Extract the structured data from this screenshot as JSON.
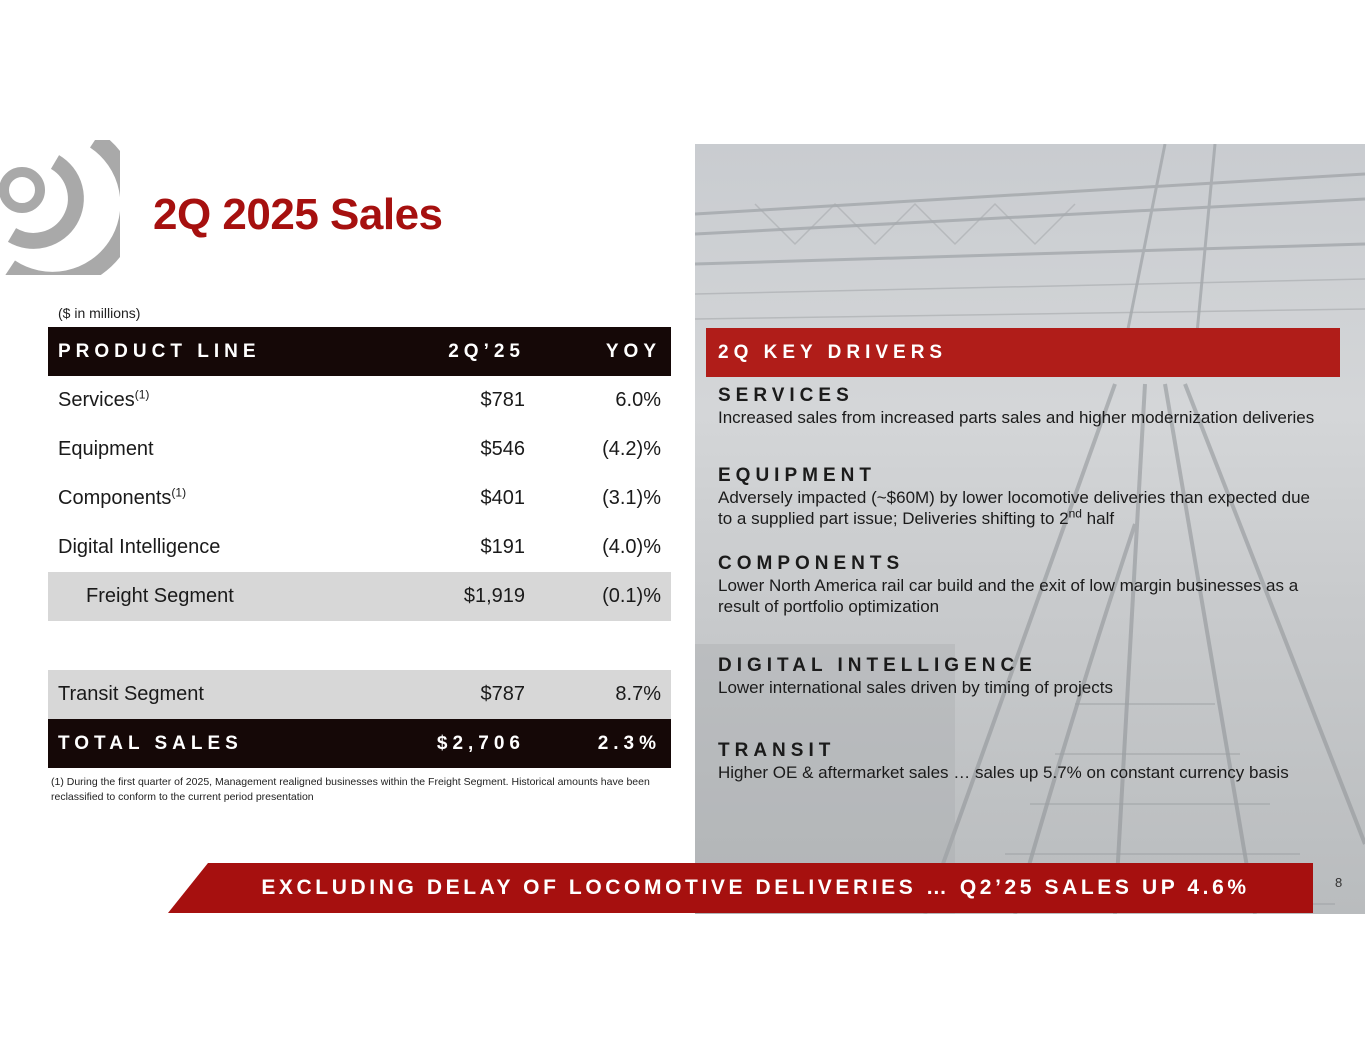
{
  "title": "2Q 2025 Sales",
  "unit_note": "($ in millions)",
  "table": {
    "headers": [
      "PRODUCT LINE",
      "2Q’25",
      "YOY"
    ],
    "rows": [
      {
        "label": "Services",
        "sup": "(1)",
        "value": "$781",
        "yoy": "6.0%"
      },
      {
        "label": "Equipment",
        "sup": "",
        "value": "$546",
        "yoy": "(4.2)%"
      },
      {
        "label": "Components",
        "sup": "(1)",
        "value": "$401",
        "yoy": "(3.1)%"
      },
      {
        "label": "Digital Intelligence",
        "sup": "",
        "value": "$191",
        "yoy": "(4.0)%"
      }
    ],
    "freight": {
      "label": "Freight Segment",
      "value": "$1,919",
      "yoy": "(0.1)%"
    },
    "transit": {
      "label": "Transit Segment",
      "value": "$787",
      "yoy": "8.7%"
    },
    "total": {
      "label": "TOTAL SALES",
      "value": "$2,706",
      "yoy": "2.3%"
    }
  },
  "footnote": "(1) During the first quarter of 2025, Management realigned businesses within the Freight Segment. Historical amounts have been reclassified to conform to the current period presentation",
  "drivers": {
    "title": "2Q KEY DRIVERS",
    "services": {
      "heading": "SERVICES",
      "text": "Increased sales from increased parts sales and higher modernization deliveries"
    },
    "equipment": {
      "heading": "EQUIPMENT",
      "text": "Adversely impacted (~$60M) by lower locomotive deliveries than expected due to a supplied part issue;  Deliveries shifting to 2",
      "sup": "nd",
      "text_end": " half"
    },
    "components": {
      "heading": "COMPONENTS",
      "text": "Lower North America rail car build and the exit of low margin businesses as a result of portfolio optimization"
    },
    "digital": {
      "heading": "DIGITAL INTELLIGENCE",
      "text": "Lower international sales driven by timing of projects"
    },
    "transit": {
      "heading": "TRANSIT",
      "text": "Higher OE & aftermarket sales … sales up 5.7% on constant currency basis"
    }
  },
  "banner": "EXCLUDING DELAY OF LOCOMOTIVE DELIVERIES … Q2’25 SALES UP 4.6%",
  "page_number": "8",
  "colors": {
    "accent": "#a6100f",
    "driver_bar": "#b01d19",
    "header_bg": "#150807",
    "shade": "#d7d7d7"
  }
}
